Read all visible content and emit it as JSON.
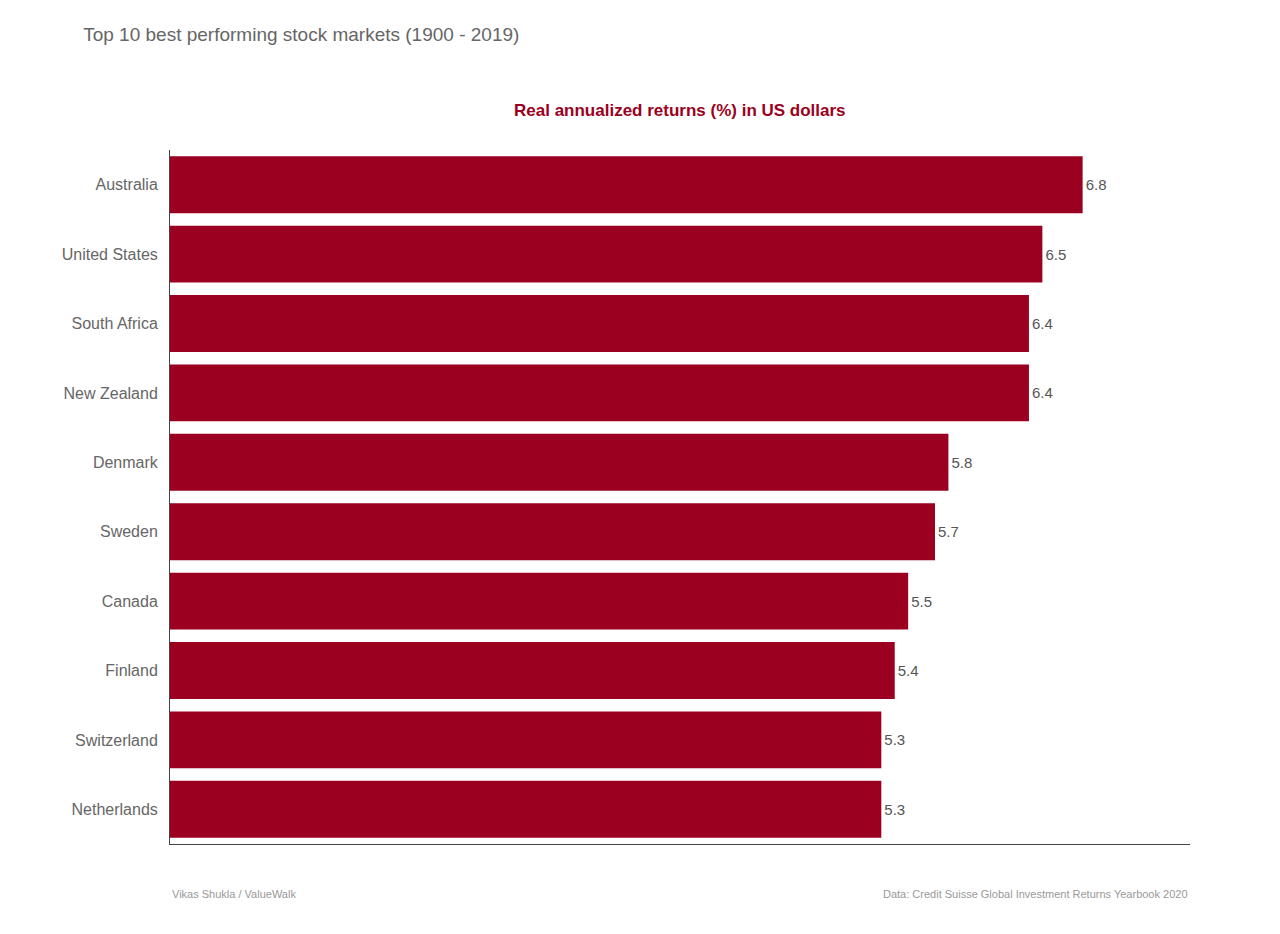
{
  "chart_data": {
    "type": "bar",
    "orientation": "horizontal",
    "title": "Top 10 best performing stock markets (1900 - 2019)",
    "subtitle": "Real annualized returns (%) in US dollars",
    "categories": [
      "Australia",
      "United States",
      "South Africa",
      "New Zealand",
      "Denmark",
      "Sweden",
      "Canada",
      "Finland",
      "Switzerland",
      "Netherlands"
    ],
    "values": [
      6.8,
      6.5,
      6.4,
      6.4,
      5.8,
      5.7,
      5.5,
      5.4,
      5.3,
      5.3
    ],
    "color": "#9b0020",
    "xlim": [
      0,
      7.6
    ],
    "data_labels": true,
    "tick_labels": "y",
    "grid": false,
    "annotations": [
      "Vikas Shukla / ValueWalk",
      "Data: Credit Suisse Global Investment Returns Yearbook 2020"
    ]
  }
}
